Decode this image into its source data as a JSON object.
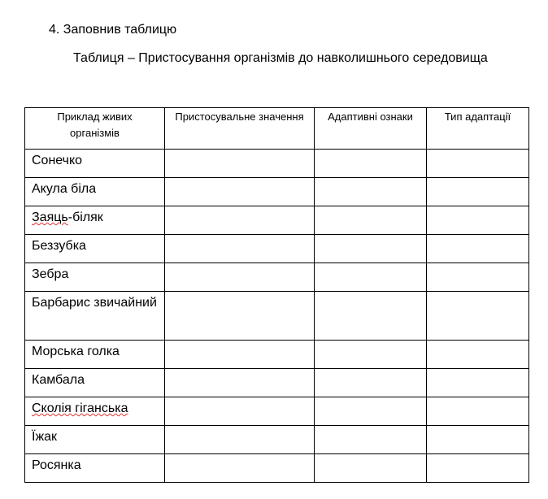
{
  "heading": "4. Заповнив таблицю",
  "caption": "Таблиця – Пристосування організмів до навколишнього середовища",
  "table": {
    "headers": [
      "Приклад живих організмів",
      "Пристосувальне значення",
      "Адаптивні ознаки",
      "Тип адаптації"
    ],
    "rows": [
      "Сонечко",
      "Акула біла",
      "Заяць-біляк",
      "Беззубка",
      "Зебра",
      "Барбарис звичайний",
      "Морська голка",
      "Камбала",
      "Сколія гіганська",
      "Їжак",
      "Росянка"
    ],
    "misspelled": [
      "Заяць",
      "Сколія гіганська"
    ]
  }
}
